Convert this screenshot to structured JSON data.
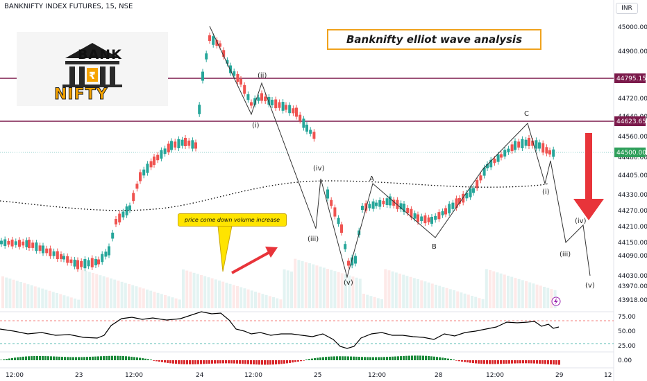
{
  "header": {
    "symbol": "BANKNIFTY INDEX FUTURES, 15, NSE",
    "currency": "INR"
  },
  "annotations": {
    "title": "Banknifty elliot wave analysis",
    "volume_note": "price come down volume increase",
    "logo_top": "BANK",
    "logo_bottom": "NIFTY",
    "wave_labels": [
      "(i)",
      "(ii)",
      "(iii)",
      "(iv)",
      "(v)",
      "A",
      "B",
      "C",
      "(i)",
      "(iii)",
      "(iv)",
      "(v)"
    ]
  },
  "price_axis": {
    "ticks": [
      "45000.00",
      "44900.00",
      "44720.00",
      "44640.00",
      "44560.00",
      "44480.00",
      "44405.00",
      "44330.00",
      "44270.00",
      "44210.00",
      "44150.00",
      "44090.00",
      "44030.00",
      "43970.00",
      "43918.00"
    ],
    "markers": [
      {
        "label": "44795.15",
        "color": "#7b1a4b"
      },
      {
        "label": "44623.65",
        "color": "#7b1a4b"
      },
      {
        "label": "44500.00",
        "color": "#2e9f5a"
      }
    ]
  },
  "oscillator_axis": {
    "rsi_ticks": [
      "75.00",
      "50.00",
      "25.00"
    ],
    "hist_ticks": [
      "0.00"
    ]
  },
  "time_axis": {
    "labels": [
      "12:00",
      "23",
      "12:00",
      "24",
      "12:00",
      "25",
      "12:00",
      "28",
      "12:00",
      "29",
      "12"
    ]
  },
  "chart_data": {
    "type": "candlestick",
    "price_range": [
      43918,
      45030
    ],
    "levels": [
      44795.15,
      44623.65,
      44500.0
    ],
    "colors": {
      "up": "#26a69a",
      "down": "#ef5350",
      "level": "#7b1a4b",
      "arrow": "#e8343a",
      "note": "#ffe400",
      "title_border": "#f0a21c"
    }
  }
}
